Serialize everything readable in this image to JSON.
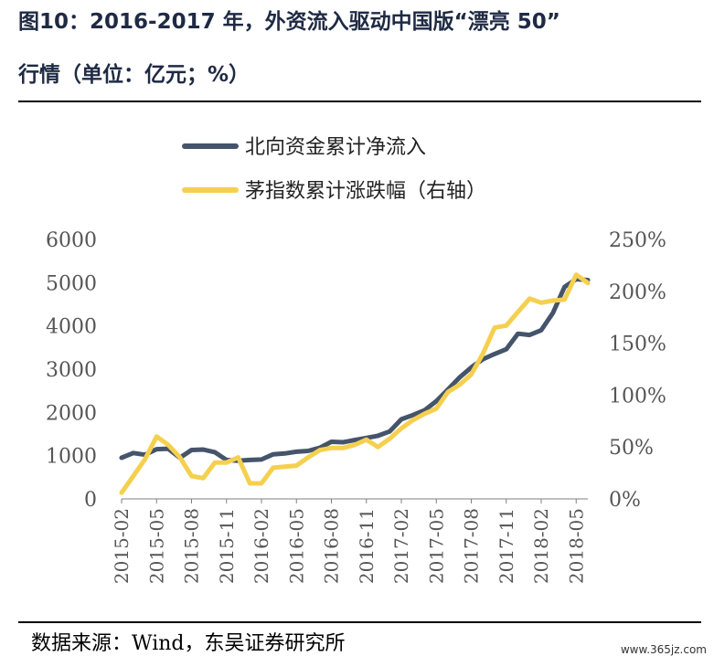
{
  "header": {
    "title_line1": "图10：2016-2017 年，外资流入驱动中国版“漂亮 50”",
    "title_line2": "行情（单位：亿元；%）"
  },
  "footer": {
    "source": "数据来源：Wind，东吴证券研究所",
    "watermark": "www.365jz.com"
  },
  "chart_data": {
    "type": "line",
    "title": "",
    "xlabel": "",
    "ylabel": "",
    "x": [
      "2015-02",
      "2015-03",
      "2015-04",
      "2015-05",
      "2015-06",
      "2015-07",
      "2015-08",
      "2015-09",
      "2015-10",
      "2015-11",
      "2015-12",
      "2016-01",
      "2016-02",
      "2016-03",
      "2016-04",
      "2016-05",
      "2016-06",
      "2016-07",
      "2016-08",
      "2016-09",
      "2016-10",
      "2016-11",
      "2016-12",
      "2017-01",
      "2017-02",
      "2017-03",
      "2017-04",
      "2017-05",
      "2017-06",
      "2017-07",
      "2017-08",
      "2017-09",
      "2017-10",
      "2017-11",
      "2017-12",
      "2018-01",
      "2018-02",
      "2018-03",
      "2018-04",
      "2018-05",
      "2018-06"
    ],
    "x_tick_labels": [
      "2015-02",
      "2015-05",
      "2015-08",
      "2015-11",
      "2016-02",
      "2016-05",
      "2016-08",
      "2016-11",
      "2017-02",
      "2017-05",
      "2017-08",
      "2017-11",
      "2018-02",
      "2018-05"
    ],
    "y_left_ticks": [
      "0",
      "1000",
      "2000",
      "3000",
      "4000",
      "5000",
      "6000"
    ],
    "y_right_ticks": [
      "0%",
      "50%",
      "100%",
      "150%",
      "200%",
      "250%"
    ],
    "ylim_left": [
      0,
      6000
    ],
    "ylim_right": [
      0,
      250
    ],
    "legend_position": "top-center",
    "series": [
      {
        "name": "北向资金累计净流入",
        "axis": "left",
        "color": "#44546a",
        "values": [
          950,
          1060,
          1020,
          1150,
          1160,
          950,
          1130,
          1140,
          1080,
          900,
          880,
          900,
          910,
          1030,
          1050,
          1090,
          1110,
          1180,
          1320,
          1310,
          1360,
          1410,
          1460,
          1560,
          1840,
          1940,
          2050,
          2260,
          2530,
          2810,
          3040,
          3230,
          3350,
          3460,
          3820,
          3790,
          3900,
          4300,
          4900,
          5080,
          5060
        ]
      },
      {
        "name": "茅指数累计涨跌幅（右轴）",
        "axis": "right",
        "color": "#f5d04f",
        "values": [
          6,
          22,
          38,
          60,
          52,
          40,
          22,
          20,
          35,
          35,
          40,
          15,
          15,
          30,
          31,
          32,
          40,
          47,
          49,
          49,
          52,
          57,
          50,
          58,
          68,
          76,
          82,
          87,
          103,
          110,
          120,
          140,
          165,
          167,
          180,
          193,
          189,
          191,
          192,
          216,
          208
        ]
      }
    ]
  }
}
